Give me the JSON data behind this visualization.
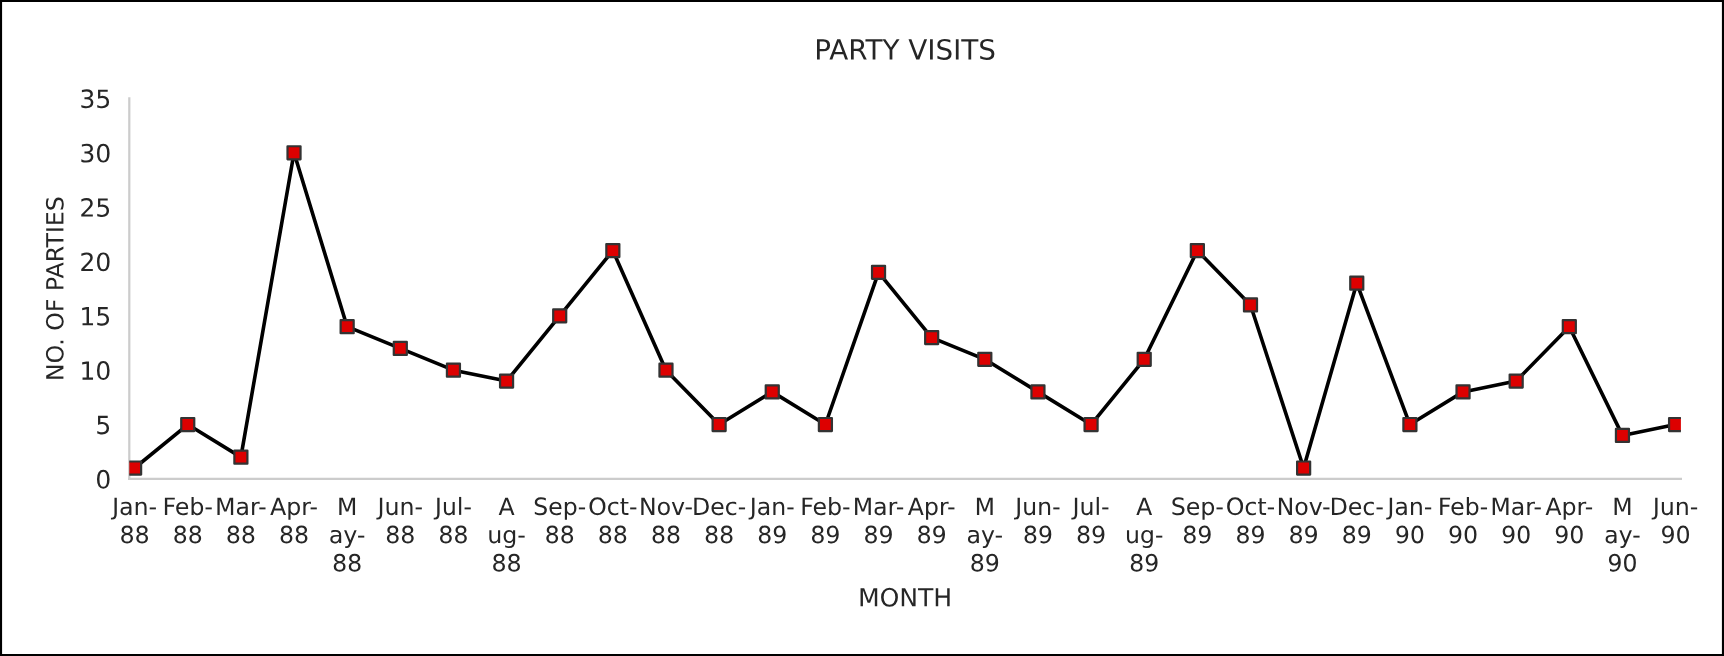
{
  "chart_data": {
    "type": "line",
    "title": "PARTY VISITS",
    "xlabel": "MONTH",
    "ylabel": "NO. OF PARTIES",
    "categories": [
      "Jan-\n88",
      "Feb-\n88",
      "Mar-\n88",
      "Apr-\n88",
      "M\nay-\n88",
      "Jun-\n88",
      "Jul-\n88",
      "A\nug-\n88",
      "Sep-\n88",
      "Oct-\n88",
      "Nov-\n88",
      "Dec-\n88",
      "Jan-\n89",
      "Feb-\n89",
      "Mar-\n89",
      "Apr-\n89",
      "M\nay-\n89",
      "Jun-\n89",
      "Jul-\n89",
      "A\nug-\n89",
      "Sep-\n89",
      "Oct-\n89",
      "Nov-\n89",
      "Dec-\n89",
      "Jan-\n90",
      "Feb-\n90",
      "Mar-\n90",
      "Apr-\n90",
      "M\nay-\n90",
      "Jun-\n90"
    ],
    "series": [
      {
        "color": "#000000",
        "values": [
          1,
          5,
          2,
          30,
          14,
          12,
          10,
          9,
          15,
          21,
          10,
          5,
          8,
          5,
          19,
          13,
          11,
          8,
          5,
          11,
          21,
          16,
          1,
          18,
          5,
          8,
          9,
          14,
          4,
          5
        ]
      }
    ],
    "marker": "square",
    "line_style": "solid",
    "ylim": [
      0,
      35
    ],
    "yticks": [
      0,
      5,
      10,
      15,
      20,
      25,
      30,
      35
    ],
    "grid": false,
    "legend": false
  }
}
